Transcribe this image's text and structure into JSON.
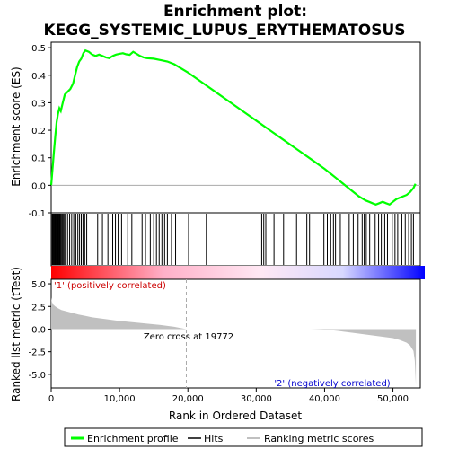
{
  "chart_data": {
    "type": "line",
    "title": "Enrichment plot: KEGG_SYSTEMIC_LUPUS_ERYTHEMATOSUS",
    "title_lines": [
      "Enrichment plot:",
      "KEGG_SYSTEMIC_LUPUS_ERYTHEMATOSUS"
    ],
    "top_panel": {
      "ylabel": "Enrichment score (ES)",
      "ylim": [
        -0.1,
        0.52
      ],
      "yticks": [
        "-0.1",
        "0.0",
        "0.1",
        "0.2",
        "0.3",
        "0.4",
        "0.5"
      ],
      "ytick_values": [
        -0.1,
        0.0,
        0.1,
        0.2,
        0.3,
        0.4,
        0.5
      ],
      "grid": false,
      "series": [
        {
          "name": "Enrichment profile",
          "color": "#00ff00",
          "x": [
            0,
            200,
            400,
            600,
            800,
            1000,
            1200,
            1400,
            1700,
            2000,
            2400,
            2800,
            3200,
            3500,
            3800,
            4100,
            4400,
            4700,
            5000,
            5500,
            6000,
            6500,
            7000,
            7500,
            8000,
            8500,
            9000,
            9500,
            10000,
            10500,
            11000,
            11500,
            12000,
            12500,
            13000,
            13500,
            14000,
            15000,
            16000,
            17000,
            18000,
            20000,
            22000,
            24000,
            26000,
            28000,
            30000,
            32000,
            34000,
            36000,
            38000,
            40000,
            41000,
            42000,
            43000,
            44000,
            45000,
            46000,
            46500,
            47000,
            47500,
            48000,
            48500,
            49000,
            49500,
            50000,
            50500,
            51000,
            51500,
            52000,
            52500,
            53000,
            53300
          ],
          "y": [
            0.0,
            0.06,
            0.12,
            0.18,
            0.23,
            0.26,
            0.28,
            0.27,
            0.3,
            0.33,
            0.34,
            0.35,
            0.37,
            0.4,
            0.43,
            0.45,
            0.46,
            0.48,
            0.49,
            0.485,
            0.475,
            0.47,
            0.475,
            0.47,
            0.465,
            0.462,
            0.47,
            0.475,
            0.478,
            0.48,
            0.476,
            0.474,
            0.485,
            0.478,
            0.47,
            0.465,
            0.462,
            0.46,
            0.455,
            0.45,
            0.44,
            0.41,
            0.375,
            0.34,
            0.305,
            0.27,
            0.235,
            0.2,
            0.165,
            0.13,
            0.095,
            0.06,
            0.04,
            0.02,
            0.0,
            -0.02,
            -0.04,
            -0.055,
            -0.06,
            -0.065,
            -0.07,
            -0.065,
            -0.06,
            -0.065,
            -0.07,
            -0.06,
            -0.05,
            -0.045,
            -0.04,
            -0.035,
            -0.025,
            -0.01,
            0.005
          ]
        }
      ]
    },
    "hits": {
      "name": "Hits",
      "color": "#000000",
      "positions": [
        150,
        260,
        380,
        470,
        560,
        650,
        740,
        830,
        920,
        1010,
        1100,
        1190,
        1300,
        1420,
        1560,
        1700,
        1850,
        2000,
        2150,
        2400,
        2700,
        3000,
        3300,
        3600,
        3900,
        4150,
        4400,
        4650,
        4900,
        5200,
        6800,
        7500,
        8300,
        9000,
        9400,
        9800,
        10300,
        11200,
        11800,
        13300,
        13800,
        14500,
        15000,
        15400,
        15800,
        16200,
        16600,
        17000,
        17600,
        18200,
        20100,
        22700,
        30800,
        31100,
        31400,
        32600,
        34000,
        35900,
        37400,
        37800,
        39900,
        40400,
        40900,
        41300,
        41600,
        42300,
        43600,
        44200,
        44900,
        45500,
        45800,
        46100,
        46600,
        47400,
        47900,
        48300,
        48800,
        49200,
        49900,
        50300,
        50700,
        51300,
        51800,
        52300,
        52700,
        53000
      ]
    },
    "colorbar": {
      "gradient_start": "#ff0000",
      "gradient_mid": "#ffffff",
      "gradient_end": "#0000ff",
      "positive_label": "'1' (positively correlated)",
      "negative_label": "'2' (negatively correlated)"
    },
    "bottom_panel": {
      "ylabel": "Ranked list metric (tTest)",
      "xlabel": "Rank in Ordered Dataset",
      "ylim": [
        -6.5,
        5.5
      ],
      "yticks": [
        "5.0",
        "2.5",
        "0.0",
        "-2.5",
        "-5.0"
      ],
      "ytick_values": [
        5.0,
        2.5,
        0.0,
        -2.5,
        -5.0
      ],
      "xlim": [
        0,
        54000
      ],
      "xticks": [
        "0",
        "10,000",
        "20,000",
        "30,000",
        "40,000",
        "50,000"
      ],
      "xtick_values": [
        0,
        10000,
        20000,
        30000,
        40000,
        50000
      ],
      "fill_color": "#c0c0c0",
      "metric_x": [
        0,
        100,
        300,
        600,
        1000,
        1500,
        2000,
        3000,
        4000,
        5000,
        6000,
        8000,
        10000,
        12000,
        14000,
        16000,
        18000,
        19772,
        22000,
        26000,
        30000,
        34000,
        38000,
        40000,
        42000,
        44000,
        46000,
        48000,
        49000,
        50000,
        51000,
        52000,
        52500,
        53000,
        53200,
        53350
      ],
      "metric_y": [
        3.5,
        3.0,
        2.7,
        2.5,
        2.3,
        2.1,
        2.0,
        1.8,
        1.6,
        1.45,
        1.3,
        1.1,
        0.9,
        0.75,
        0.6,
        0.45,
        0.25,
        0.0,
        0.0,
        0.0,
        0.0,
        0.0,
        0.0,
        -0.05,
        -0.2,
        -0.4,
        -0.6,
        -0.8,
        -0.9,
        -1.0,
        -1.2,
        -1.5,
        -1.8,
        -2.4,
        -3.5,
        -6.2
      ],
      "zero_cross_label": "Zero cross at 19772",
      "zero_cross": 19772
    },
    "legend": {
      "placement": "bottom",
      "entries": [
        {
          "label": "Enrichment profile",
          "color": "#00ff00"
        },
        {
          "label": "Hits",
          "color": "#000000"
        },
        {
          "label": "Ranking metric scores",
          "color": "#c0c0c0"
        }
      ]
    }
  }
}
